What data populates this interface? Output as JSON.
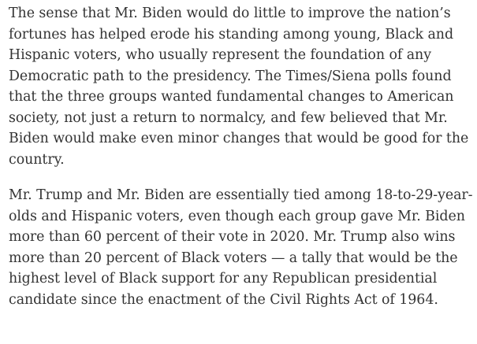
{
  "article": {
    "paragraphs": [
      "The sense that Mr. Biden would do little to improve the nation’s fortunes has helped erode his standing among young, Black and Hispanic voters, who usually represent the foundation of any Democratic path to the presidency. The Times/Siena polls found that the three groups wanted fundamental changes to American society, not just a return to normalcy, and few believed that Mr. Biden would make even minor changes that would be good for the country.",
      "Mr. Trump and Mr. Biden are essentially tied among 18-to-29-year-olds and Hispanic voters, even though each group gave Mr. Biden more than 60 percent of their vote in 2020. Mr. Trump also wins more than 20 percent of Black voters — a tally that would be the highest level of Black support for any Republican presidential candidate since the enactment of the Civil Rights Act of 1964."
    ]
  }
}
